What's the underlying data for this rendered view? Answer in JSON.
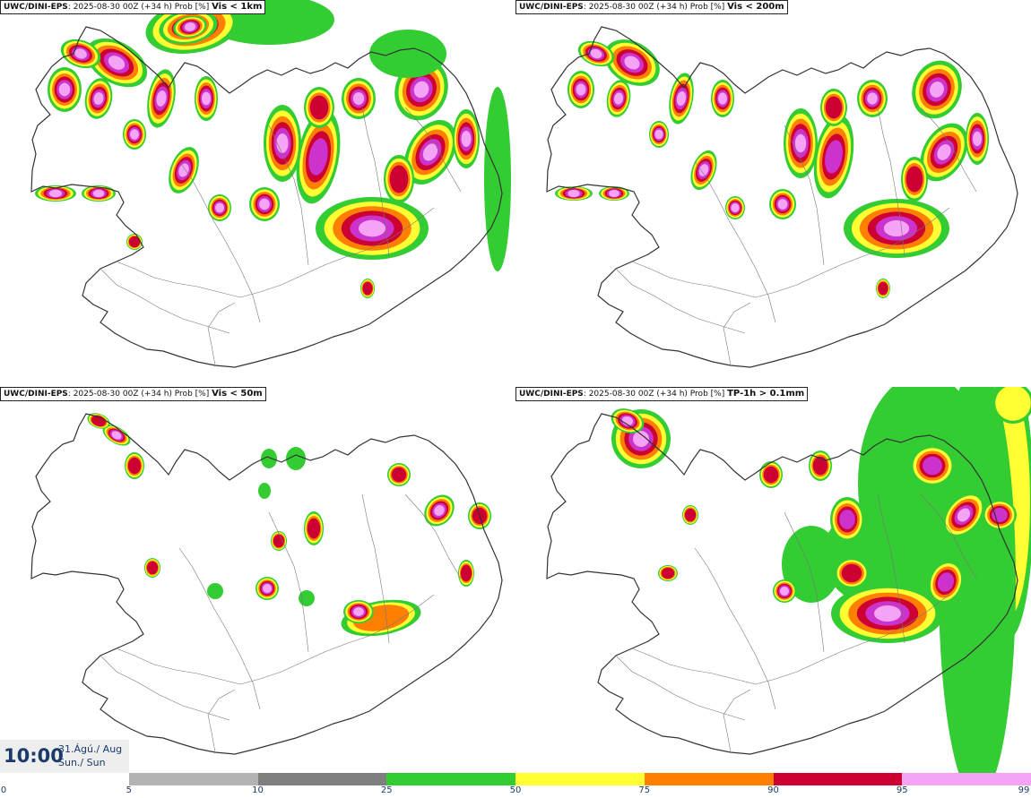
{
  "panels": [
    {
      "model": "UWC/DINI-EPS",
      "run": "2025-08-30 00Z (+34 h) Prob [%]",
      "variable": "Vis < 1km"
    },
    {
      "model": "UWC/DINI-EPS",
      "run": "2025-08-30 00Z (+34 h) Prob [%]",
      "variable": "Vis < 200m"
    },
    {
      "model": "UWC/DINI-EPS",
      "run": "2025-08-30 00Z (+34 h) Prob [%]",
      "variable": "Vis < 50m"
    },
    {
      "model": "UWC/DINI-EPS",
      "run": "2025-08-30 00Z (+34 h) Prob [%]",
      "variable": "TP-1h > 0.1mm"
    }
  ],
  "valid_time": {
    "hour": "10:00",
    "date": "31.Ágú./ Aug",
    "weekday": "Sun./ Sun"
  },
  "colorbar": {
    "ticks": [
      "0",
      "5",
      "10",
      "25",
      "50",
      "75",
      "90",
      "95",
      "99"
    ],
    "colors": [
      "#ffffff",
      "#b3b3b3",
      "#7f7f7f",
      "#33cc33",
      "#ffff33",
      "#ff7f00",
      "#cc0033",
      "#cc33cc",
      "#f5a3f5"
    ]
  },
  "colors": {
    "coast": "#333333",
    "title_text": "#111111",
    "time_text": "#1a3a6a"
  }
}
